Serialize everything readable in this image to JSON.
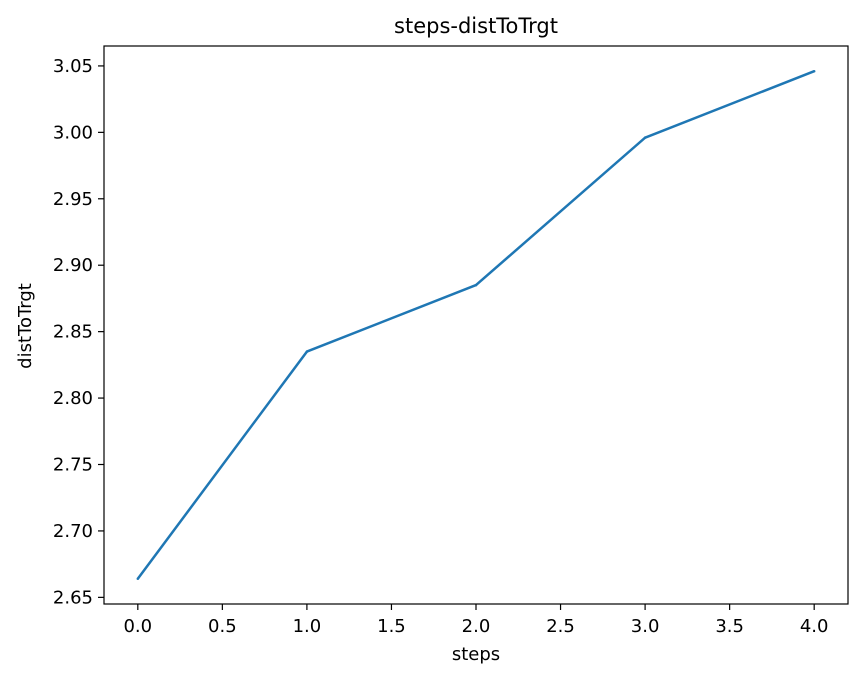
{
  "chart_data": {
    "type": "line",
    "title": "steps-distToTrgt",
    "xlabel": "steps",
    "ylabel": "distToTrgt",
    "x": [
      0,
      1,
      2,
      3,
      4
    ],
    "series": [
      {
        "values": [
          2.664,
          2.835,
          2.885,
          2.996,
          3.046
        ],
        "color": "#1f77b4"
      }
    ],
    "xlim": [
      -0.2,
      4.2
    ],
    "ylim": [
      2.645,
      3.065
    ],
    "xticks": [
      0.0,
      0.5,
      1.0,
      1.5,
      2.0,
      2.5,
      3.0,
      3.5,
      4.0
    ],
    "xtick_labels": [
      "0.0",
      "0.5",
      "1.0",
      "1.5",
      "2.0",
      "2.5",
      "3.0",
      "3.5",
      "4.0"
    ],
    "yticks": [
      2.65,
      2.7,
      2.75,
      2.8,
      2.85,
      2.9,
      2.95,
      3.0,
      3.05
    ],
    "ytick_labels": [
      "2.65",
      "2.70",
      "2.75",
      "2.80",
      "2.85",
      "2.90",
      "2.95",
      "3.00",
      "3.05"
    ],
    "grid": false,
    "legend": false
  }
}
